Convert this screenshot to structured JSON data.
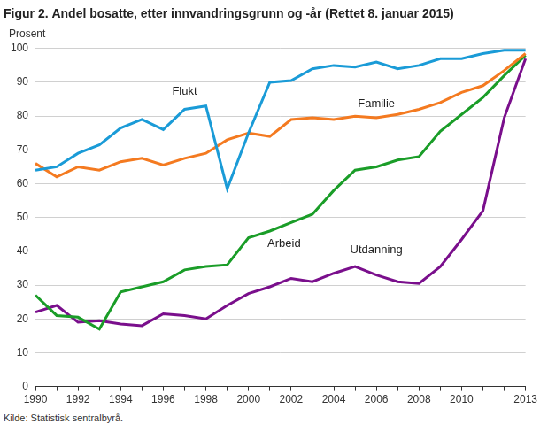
{
  "chart_data": {
    "type": "line",
    "title": "Figur 2. Andel bosatte, etter innvandringsgrunn og -år (Rettet 8. januar 2015)",
    "y_label": "Prosent",
    "source": "Kilde: Statistisk sentralbyrå.",
    "categories": [
      "1990",
      null,
      "1992",
      null,
      "1994",
      null,
      "1996",
      null,
      "1998",
      null,
      "2000",
      null,
      "2002",
      null,
      "2004",
      null,
      "2006",
      null,
      "2008",
      null,
      "2010",
      null,
      null,
      "2013"
    ],
    "series": [
      {
        "name": "Flukt",
        "color": "#1a9bd7",
        "values": [
          64,
          65,
          69,
          71.5,
          76.5,
          79,
          76,
          82,
          83,
          58.5,
          75,
          90,
          90.5,
          94,
          95,
          94.5,
          96,
          94,
          95,
          97,
          97,
          98.5,
          99.5,
          99.5
        ]
      },
      {
        "name": "Familie",
        "color": "#f47a20",
        "values": [
          66,
          62,
          65,
          64,
          66.5,
          67.5,
          65.5,
          67.5,
          69,
          73,
          75,
          74,
          79,
          79.5,
          79,
          80,
          79.5,
          80.5,
          82,
          84,
          87,
          89,
          93.5,
          98.5
        ]
      },
      {
        "name": "Arbeid",
        "color": "#1a9d28",
        "values": [
          27,
          21,
          20.5,
          17,
          28,
          29.5,
          31,
          34.5,
          35.5,
          36,
          44,
          46,
          48.5,
          51,
          58,
          64,
          65,
          67,
          68,
          75.5,
          80.5,
          85.5,
          92,
          98
        ]
      },
      {
        "name": "Utdanning",
        "color": "#7a0f8c",
        "values": [
          22,
          24,
          19,
          19.5,
          18.5,
          18,
          21.5,
          21,
          20,
          24,
          27.5,
          29.5,
          32,
          31,
          33.5,
          35.5,
          33,
          31,
          30.5,
          35.5,
          43.5,
          52,
          79.5,
          97
        ]
      }
    ],
    "ylim": [
      0,
      100
    ],
    "yticks": [
      0,
      10,
      20,
      30,
      40,
      50,
      60,
      70,
      80,
      90,
      100
    ],
    "grid": true
  }
}
